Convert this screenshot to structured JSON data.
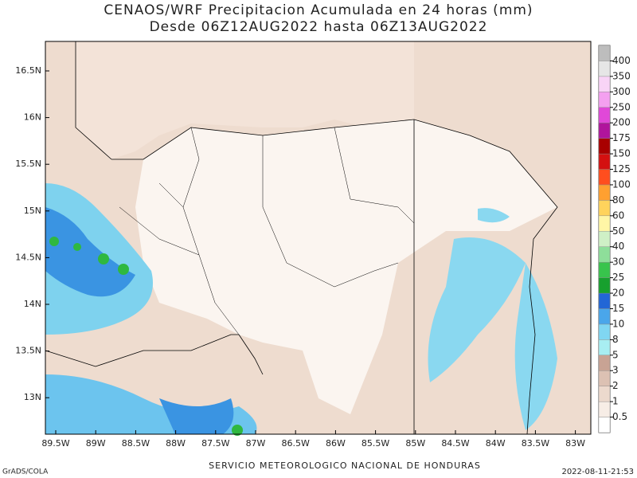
{
  "header": {
    "title": "CENAOS/WRF Precipitacion Acumulada en 24 horas (mm)",
    "subtitle": "Desde 06Z12AUG2022 hasta 06Z13AUG2022"
  },
  "map": {
    "lat_labels": [
      "16.5N",
      "16N",
      "15.5N",
      "15N",
      "14.5N",
      "14N",
      "13.5N",
      "13N"
    ],
    "lon_labels": [
      "89.5W",
      "89W",
      "88.5W",
      "88W",
      "87.5W",
      "87W",
      "86.5W",
      "86W",
      "85.5W",
      "85W",
      "84.5W",
      "84W",
      "83.5W",
      "83W"
    ]
  },
  "colorbar": {
    "labels": [
      0.5,
      1,
      2,
      3,
      5,
      8,
      10,
      15,
      20,
      25,
      30,
      40,
      50,
      60,
      80,
      100,
      125,
      150,
      175,
      200,
      250,
      300,
      350,
      400
    ],
    "colors": [
      "#ffffff",
      "#f7ede6",
      "#ecd9cd",
      "#dcc1b3",
      "#c8a394",
      "#a8eef2",
      "#80d6f2",
      "#4aa6ea",
      "#2266d6",
      "#17a02e",
      "#38c44c",
      "#8ede9a",
      "#cff0c6",
      "#fff6a6",
      "#ffd35c",
      "#ffa030",
      "#ff4e1e",
      "#d41010",
      "#a80000",
      "#b0149c",
      "#e048d8",
      "#f4a0f0",
      "#f8d4f6",
      "#e6e6e6",
      "#bdbdbd"
    ]
  },
  "footer": {
    "left": "GrADS/COLA",
    "center": "SERVICIO METEOROLOGICO NACIONAL DE HONDURAS",
    "right": "2022-08-11-21:53"
  }
}
